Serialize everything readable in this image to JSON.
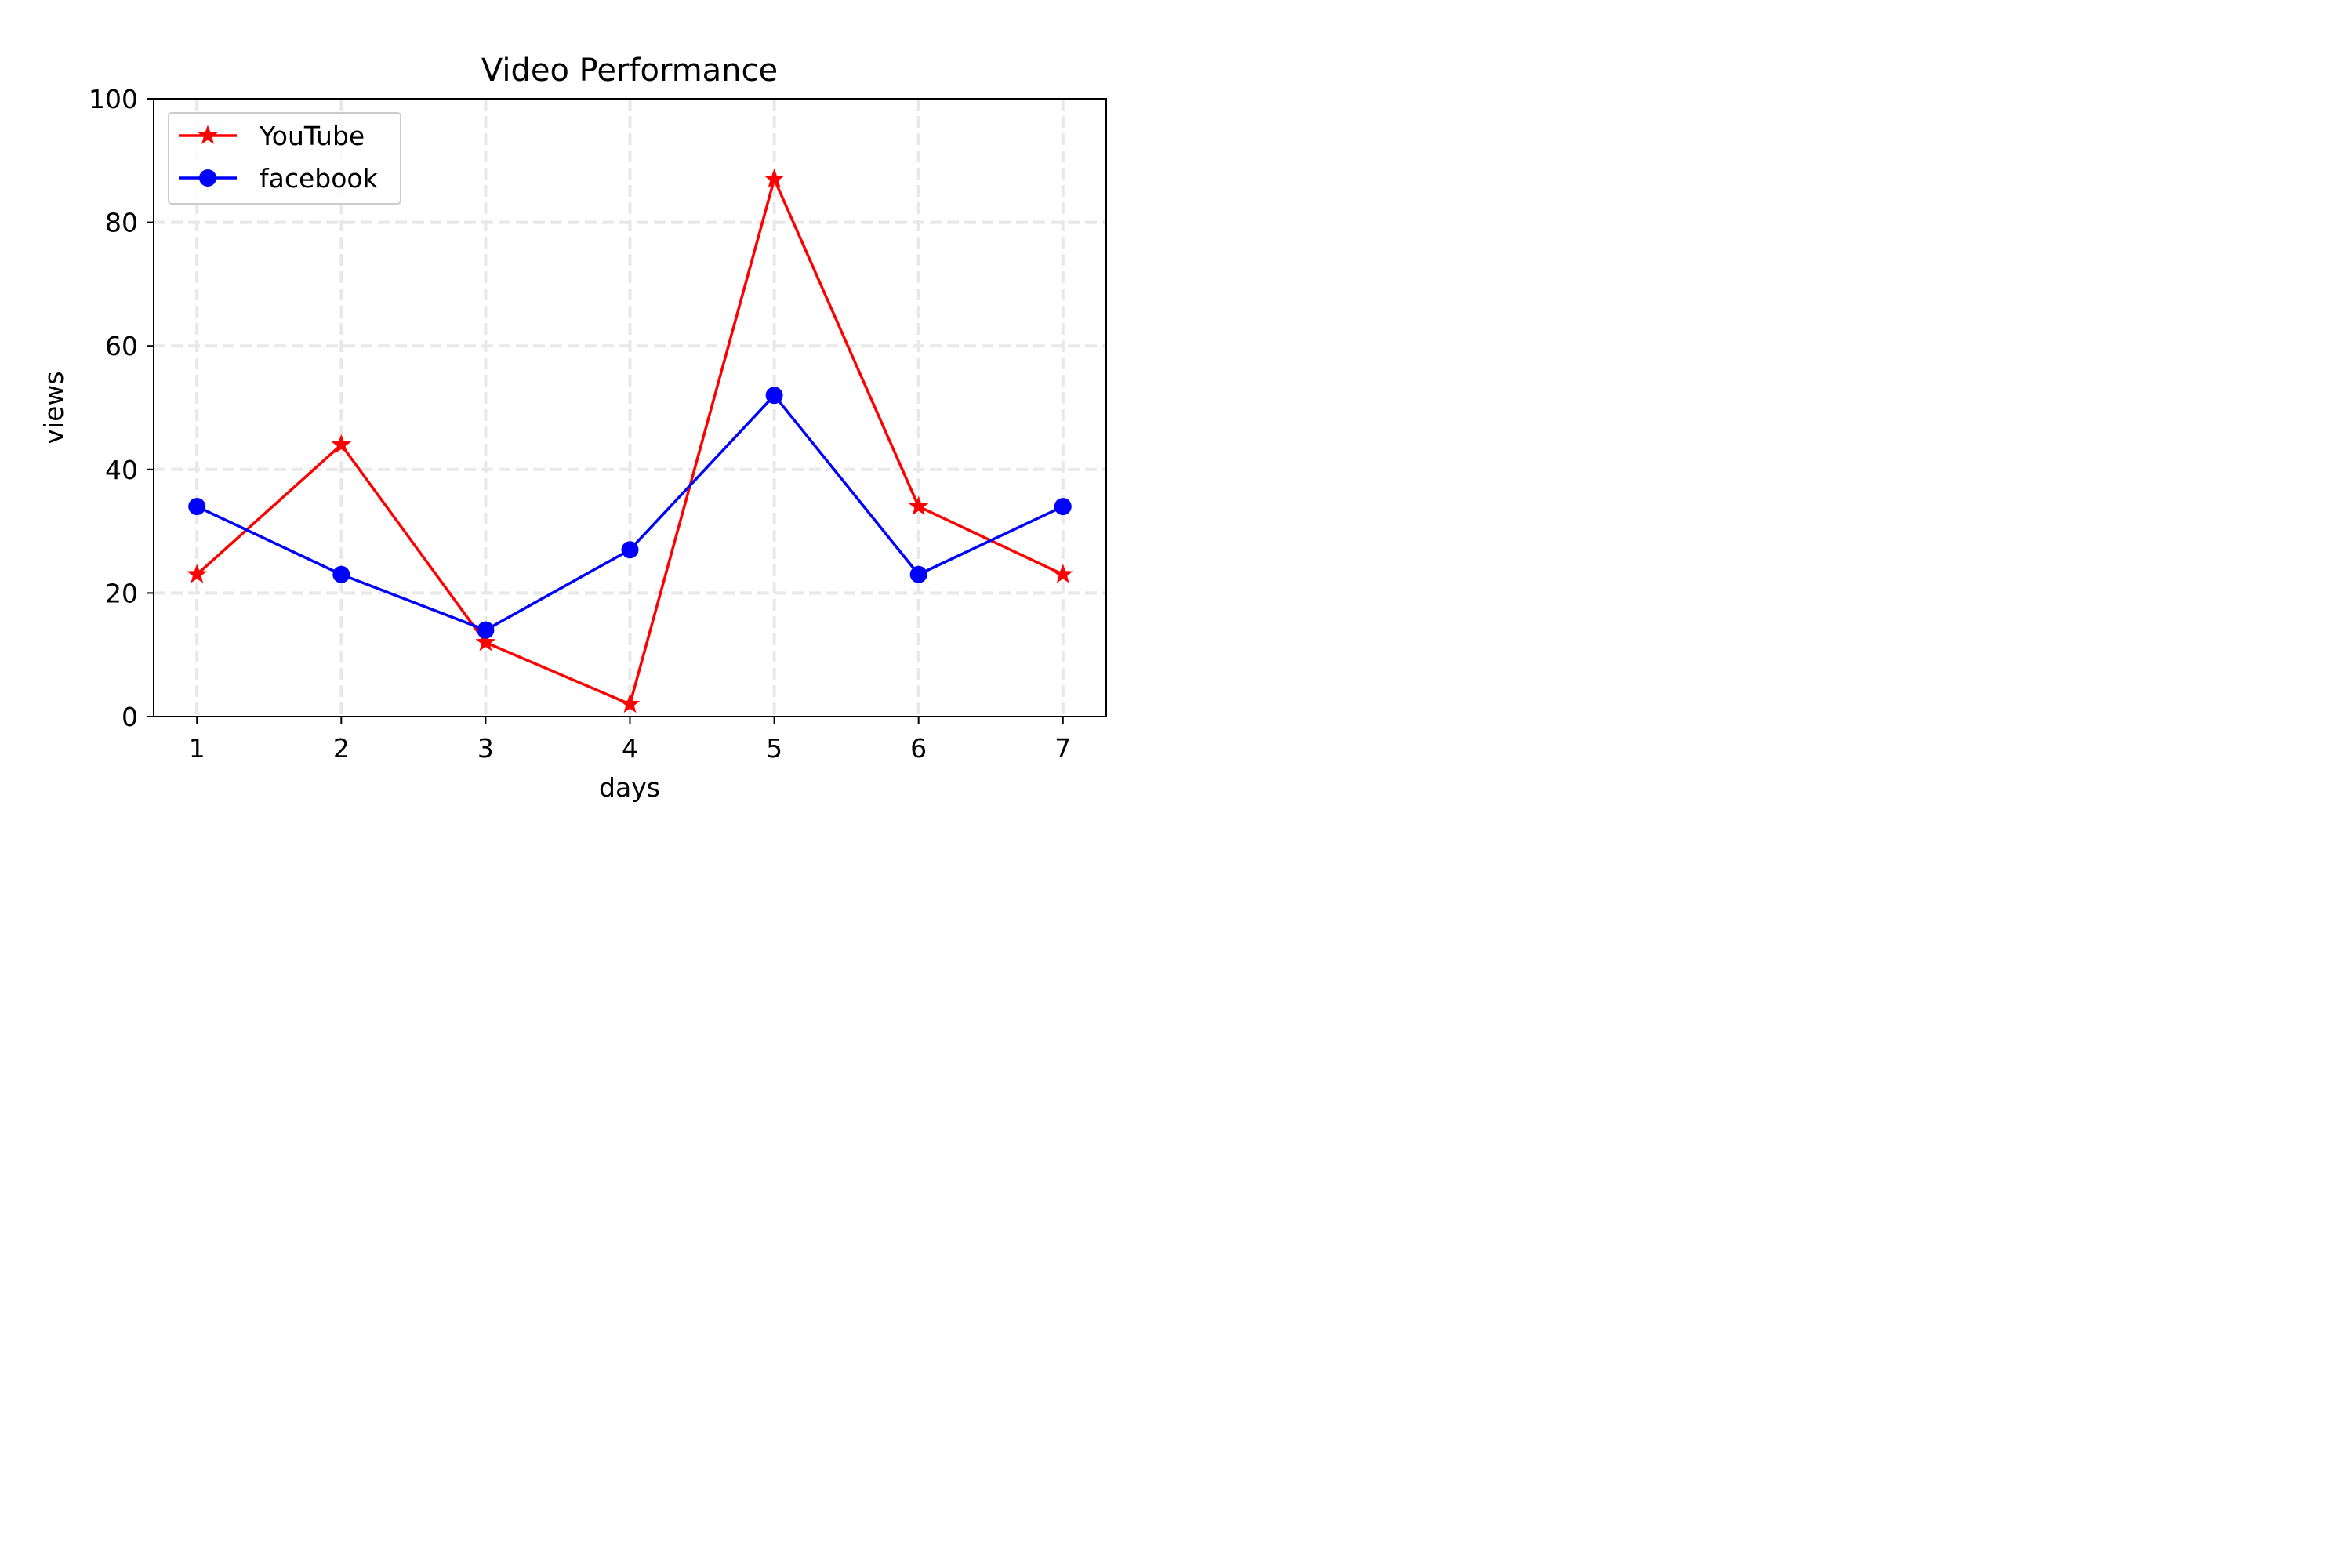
{
  "chart_data": {
    "type": "line",
    "title": "Video Performance",
    "xlabel": "days",
    "ylabel": "views",
    "x": [
      1,
      2,
      3,
      4,
      5,
      6,
      7
    ],
    "xlim": [
      0.7,
      7.3
    ],
    "ylim": [
      0,
      100
    ],
    "x_ticks": [
      "1",
      "2",
      "3",
      "4",
      "5",
      "6",
      "7"
    ],
    "y_ticks": [
      "0",
      "20",
      "40",
      "60",
      "80",
      "100"
    ],
    "grid": true,
    "grid_style": "dashed",
    "grid_color": "#e8e8e8",
    "legend_position": "top-left",
    "series": [
      {
        "name": "YouTube",
        "values": [
          23,
          44,
          12,
          2,
          87,
          34,
          23
        ],
        "color": "#ff0000",
        "marker": "star"
      },
      {
        "name": "facebook",
        "values": [
          34,
          23,
          14,
          27,
          52,
          23,
          34
        ],
        "color": "#0000ff",
        "marker": "circle"
      }
    ]
  }
}
